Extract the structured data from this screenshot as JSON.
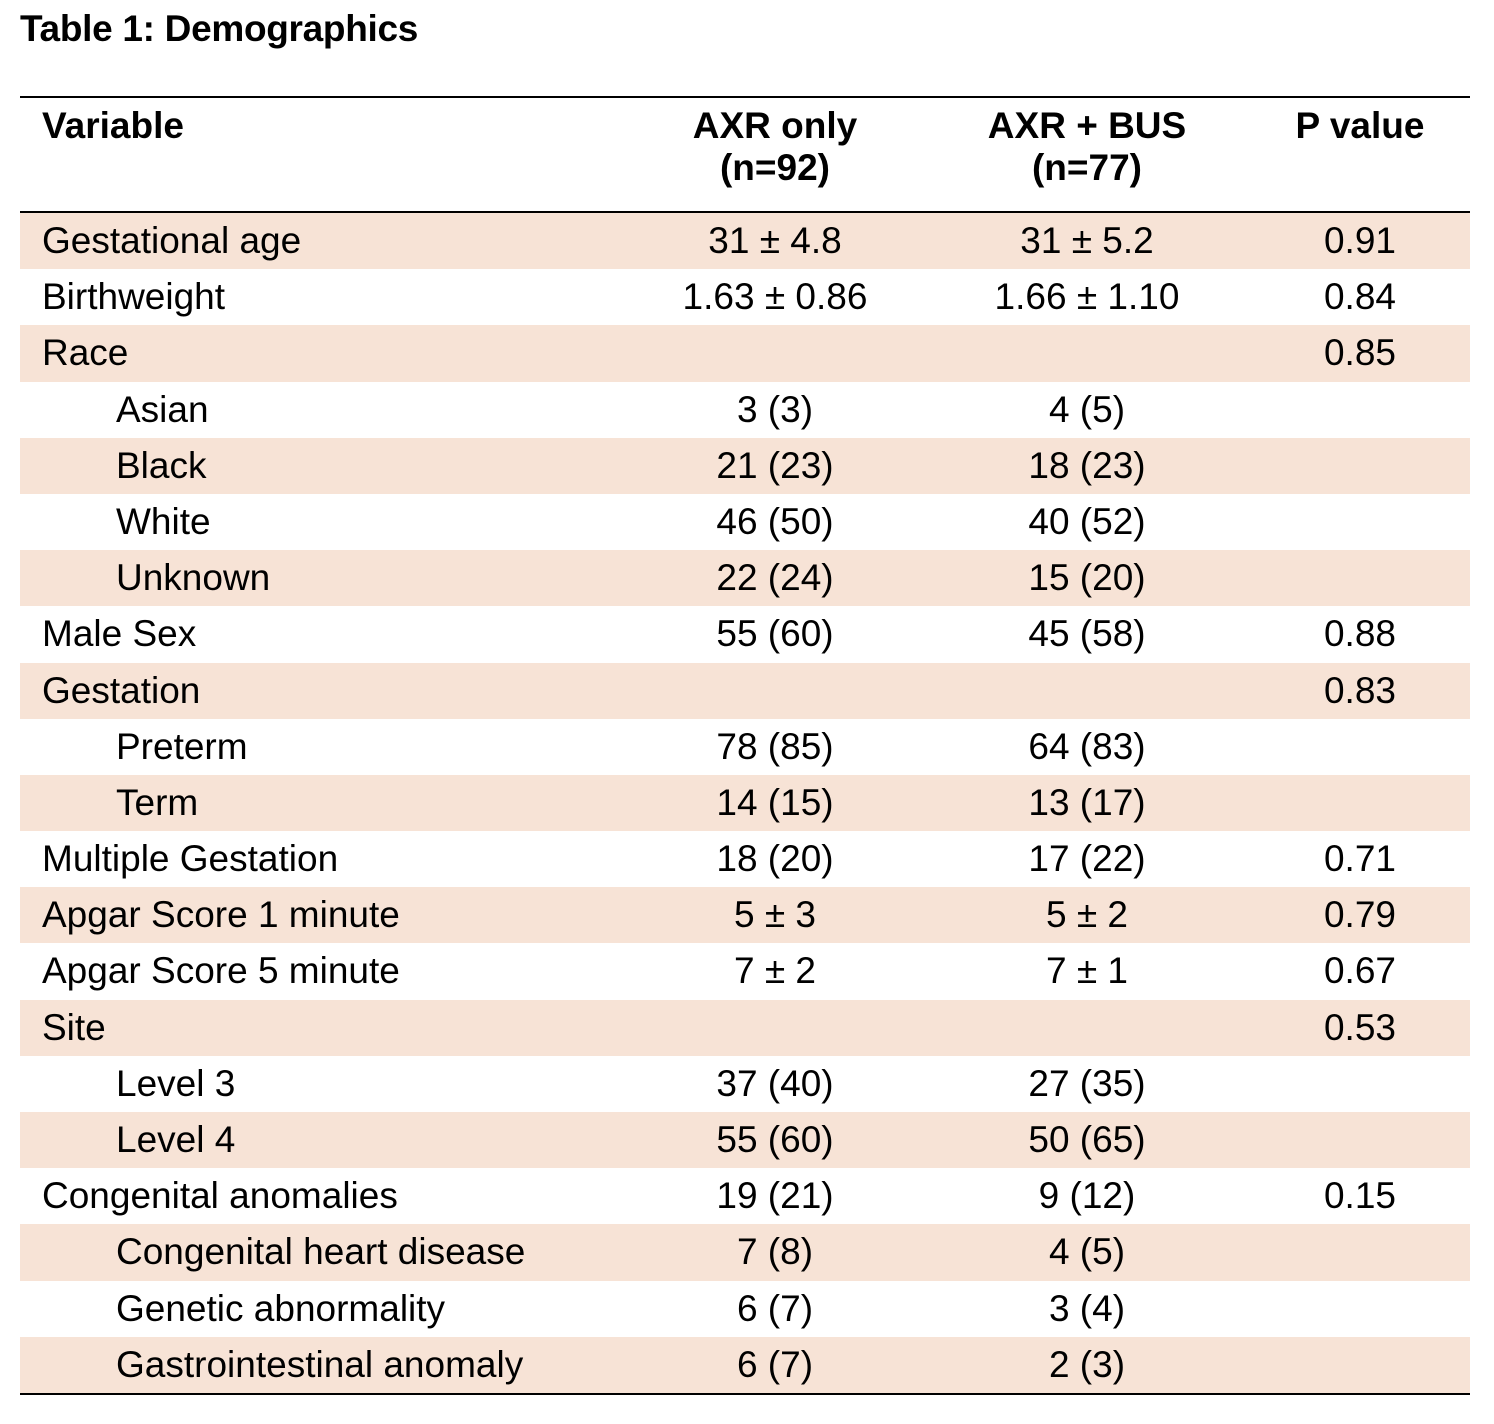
{
  "title": "Table 1: Demographics",
  "headers": {
    "variable": "Variable",
    "axr_only_1": "AXR only",
    "axr_only_2": "(n=92)",
    "axr_bus_1": "AXR + BUS",
    "axr_bus_2": "(n=77)",
    "p_value": "P value"
  },
  "rows": [
    {
      "label": "Gestational age",
      "axr": "31 ± 4.8",
      "bus": "31 ± 5.2",
      "p": "0.91"
    },
    {
      "label": "Birthweight",
      "axr": "1.63 ± 0.86",
      "bus": "1.66 ± 1.10",
      "p": "0.84"
    },
    {
      "label": "Race",
      "axr": "",
      "bus": "",
      "p": "0.85"
    },
    {
      "label": "Asian",
      "axr": "3 (3)",
      "bus": "4 (5)",
      "p": ""
    },
    {
      "label": "Black",
      "axr": "21 (23)",
      "bus": "18 (23)",
      "p": ""
    },
    {
      "label": "White",
      "axr": "46 (50)",
      "bus": "40 (52)",
      "p": ""
    },
    {
      "label": "Unknown",
      "axr": "22 (24)",
      "bus": "15 (20)",
      "p": ""
    },
    {
      "label": "Male Sex",
      "axr": "55 (60)",
      "bus": "45 (58)",
      "p": "0.88"
    },
    {
      "label": "Gestation",
      "axr": "",
      "bus": "",
      "p": "0.83"
    },
    {
      "label": "Preterm",
      "axr": "78 (85)",
      "bus": "64 (83)",
      "p": ""
    },
    {
      "label": "Term",
      "axr": "14 (15)",
      "bus": "13 (17)",
      "p": ""
    },
    {
      "label": "Multiple Gestation",
      "axr": "18 (20)",
      "bus": "17 (22)",
      "p": "0.71"
    },
    {
      "label": "Apgar Score 1 minute",
      "axr": "5 ± 3",
      "bus": "5 ± 2",
      "p": "0.79"
    },
    {
      "label": "Apgar Score 5 minute",
      "axr": "7 ± 2",
      "bus": "7 ± 1",
      "p": "0.67"
    },
    {
      "label": "Site",
      "axr": "",
      "bus": "",
      "p": "0.53"
    },
    {
      "label": "Level 3",
      "axr": "37 (40)",
      "bus": "27 (35)",
      "p": ""
    },
    {
      "label": "Level 4",
      "axr": "55 (60)",
      "bus": "50 (65)",
      "p": ""
    },
    {
      "label": "Congenital anomalies",
      "axr": "19 (21)",
      "bus": "9 (12)",
      "p": "0.15"
    },
    {
      "label": "Congenital heart disease",
      "axr": "7 (8)",
      "bus": "4 (5)",
      "p": ""
    },
    {
      "label": "Genetic abnormality",
      "axr": "6 (7)",
      "bus": "3 (4)",
      "p": ""
    },
    {
      "label": "Gastrointestinal anomaly",
      "axr": "6 (7)",
      "bus": "2 (3)",
      "p": ""
    }
  ],
  "colors": {
    "row_shade": "#f7e3d6",
    "rule": "#000000"
  }
}
